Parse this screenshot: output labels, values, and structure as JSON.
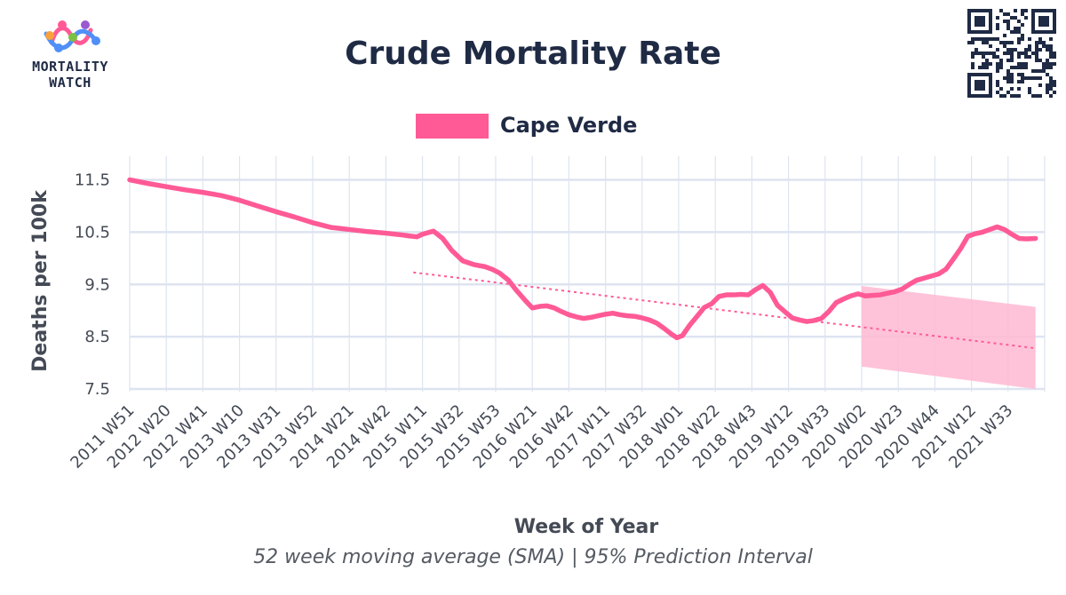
{
  "header": {
    "logo_line1": "MORTALITY",
    "logo_line2": "WATCH",
    "title": "Crude Mortality Rate"
  },
  "footer": {
    "subtitle": "52 week moving average (SMA) | 95% Prediction Interval"
  },
  "colors": {
    "series": "#ff5a96",
    "band": "#ffb8d2",
    "grid": "#dde4f0",
    "text": "#1f2a44"
  },
  "icons": [
    "logo-icon",
    "qr-code-icon"
  ],
  "chart_data": {
    "type": "line",
    "title": "Crude Mortality Rate",
    "subtitle": "52 week moving average (SMA) | 95% Prediction Interval",
    "xlabel": "Week of Year",
    "ylabel": "Deaths per 100k",
    "ylim": [
      7.45,
      11.95
    ],
    "yticks": [
      7.5,
      8.5,
      9.5,
      10.5,
      11.5
    ],
    "grid": true,
    "legend_position": "top-center",
    "xtick_labels": [
      "2011 W51",
      "2012 W20",
      "2012 W41",
      "2013 W10",
      "2013 W31",
      "2013 W52",
      "2014 W21",
      "2014 W42",
      "2015 W11",
      "2015 W32",
      "2015 W53",
      "2016 W21",
      "2016 W42",
      "2017 W11",
      "2017 W32",
      "2018 W01",
      "2018 W22",
      "2018 W43",
      "2019 W12",
      "2019 W33",
      "2020 W02",
      "2020 W23",
      "2020 W44",
      "2021 W12",
      "2021 W33"
    ],
    "series": [
      {
        "name": "Cape Verde",
        "x_index": [
          0,
          0.5,
          1,
          1.5,
          2,
          2.5,
          3,
          3.5,
          4,
          4.5,
          5,
          5.5,
          6,
          6.5,
          7,
          7.4,
          7.6,
          7.85,
          8.0,
          8.3,
          8.55,
          8.8,
          9.1,
          9.4,
          9.7,
          9.9,
          10.1,
          10.35,
          10.55,
          10.8,
          11.0,
          11.2,
          11.4,
          11.6,
          11.8,
          12.0,
          12.2,
          12.4,
          12.6,
          12.8,
          13.0,
          13.2,
          13.4,
          13.6,
          13.8,
          14.0,
          14.2,
          14.4,
          14.6,
          14.8,
          14.95,
          15.1,
          15.3,
          15.5,
          15.7,
          15.9,
          16.1,
          16.3,
          16.5,
          16.7,
          16.9,
          17.1,
          17.3,
          17.5,
          17.7,
          17.9,
          18.1,
          18.3,
          18.5,
          18.7,
          18.9,
          19.1,
          19.3,
          19.5,
          19.7,
          19.9,
          20.1,
          20.3,
          20.5,
          20.7,
          20.9,
          21.1,
          21.3,
          21.5,
          21.7,
          21.9,
          22.1,
          22.3,
          22.5,
          22.7,
          22.9,
          23.1,
          23.3,
          23.5,
          23.7,
          23.9,
          24.1,
          24.3,
          24.5,
          24.75
        ],
        "values": [
          11.5,
          11.43,
          11.37,
          11.31,
          11.26,
          11.2,
          11.11,
          11.0,
          10.89,
          10.79,
          10.68,
          10.59,
          10.55,
          10.51,
          10.48,
          10.45,
          10.43,
          10.41,
          10.46,
          10.52,
          10.38,
          10.15,
          9.95,
          9.88,
          9.84,
          9.79,
          9.72,
          9.58,
          9.4,
          9.2,
          9.05,
          9.08,
          9.09,
          9.05,
          8.98,
          8.92,
          8.88,
          8.85,
          8.87,
          8.9,
          8.93,
          8.95,
          8.92,
          8.9,
          8.89,
          8.86,
          8.82,
          8.76,
          8.66,
          8.55,
          8.48,
          8.52,
          8.72,
          8.89,
          9.06,
          9.13,
          9.27,
          9.3,
          9.3,
          9.31,
          9.3,
          9.4,
          9.48,
          9.35,
          9.1,
          8.98,
          8.86,
          8.82,
          8.79,
          8.81,
          8.85,
          8.98,
          9.15,
          9.22,
          9.28,
          9.32,
          9.28,
          9.29,
          9.3,
          9.33,
          9.36,
          9.41,
          9.5,
          9.58,
          9.62,
          9.66,
          9.7,
          9.79,
          9.98,
          10.18,
          10.42,
          10.47,
          10.5,
          10.55,
          10.6,
          10.55,
          10.46,
          10.38,
          10.37,
          10.38
        ]
      }
    ],
    "baseline": {
      "x_index": [
        7.75,
        24.75
      ],
      "values": [
        9.73,
        8.28
      ]
    },
    "prediction_interval": {
      "x_index": [
        20.0,
        24.75
      ],
      "lower": [
        7.93,
        7.5
      ],
      "upper": [
        9.47,
        9.07
      ]
    }
  }
}
